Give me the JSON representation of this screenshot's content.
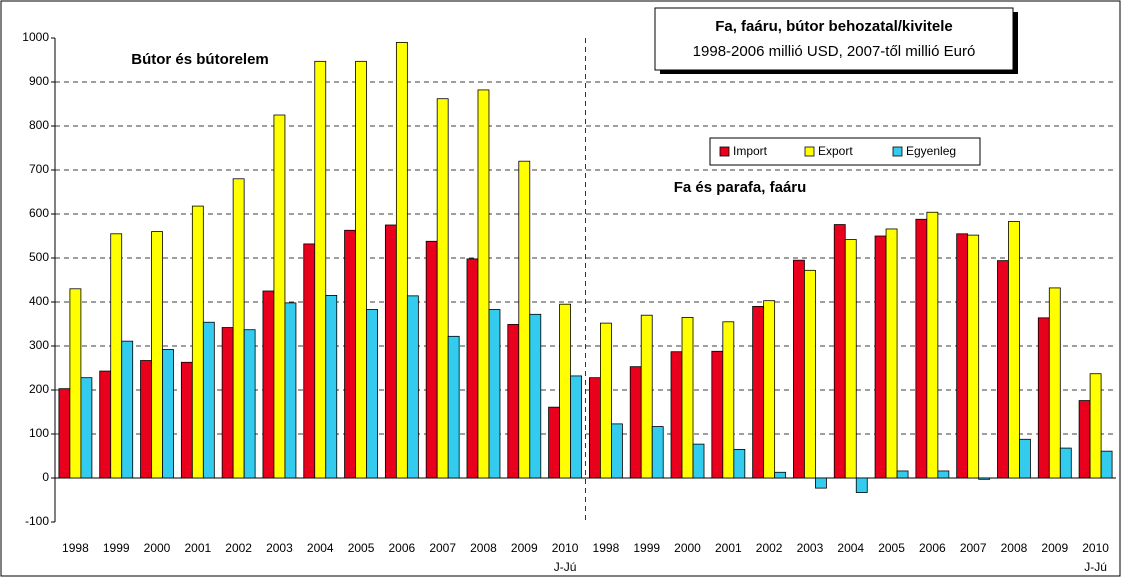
{
  "chart_data": {
    "type": "bar",
    "title": "Fa, faáru, bútor behozatal/kivitele",
    "subtitle": "1998-2006 millió USD, 2007-től millió Euró",
    "annotations": [
      "Bútor és bútorelem",
      "Fa és parafa, faáru",
      "J-Jú",
      "J-Jú"
    ],
    "categories": [
      "1998",
      "1999",
      "2000",
      "2001",
      "2002",
      "2003",
      "2004",
      "2005",
      "2006",
      "2007",
      "2008",
      "2009",
      "2010",
      "1998",
      "1999",
      "2000",
      "2001",
      "2002",
      "2003",
      "2004",
      "2005",
      "2006",
      "2007",
      "2008",
      "2009",
      "2010"
    ],
    "series": [
      {
        "name": "Import",
        "color": "#e8001c",
        "values": [
          203,
          243,
          267,
          263,
          342,
          425,
          532,
          563,
          575,
          538,
          498,
          349,
          161,
          228,
          253,
          287,
          288,
          390,
          495,
          576,
          550,
          588,
          555,
          494,
          364,
          176
        ]
      },
      {
        "name": "Export",
        "color": "#ffff00",
        "values": [
          430,
          555,
          560,
          618,
          680,
          825,
          947,
          947,
          990,
          862,
          882,
          720,
          395,
          352,
          370,
          365,
          355,
          403,
          472,
          542,
          566,
          604,
          552,
          583,
          432,
          237
        ]
      },
      {
        "name": "Egyenleg",
        "color": "#33ccee",
        "values": [
          228,
          311,
          292,
          354,
          337,
          398,
          415,
          383,
          414,
          322,
          383,
          372,
          232,
          123,
          117,
          77,
          65,
          13,
          -23,
          -33,
          16,
          16,
          -3,
          88,
          68,
          61
        ]
      }
    ],
    "ylim": [
      -100,
      1000
    ],
    "yticks": [
      -100,
      0,
      100,
      200,
      300,
      400,
      500,
      600,
      700,
      800,
      900,
      1000
    ],
    "grid": true
  }
}
